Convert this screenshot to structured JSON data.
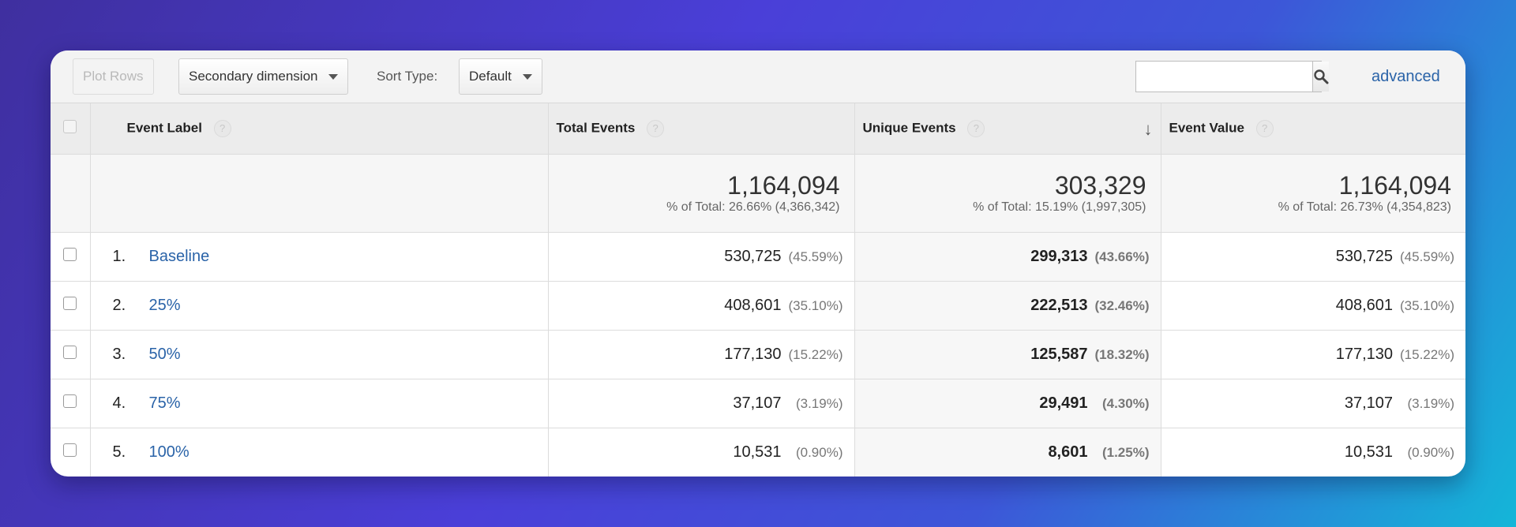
{
  "toolbar": {
    "plot_rows_label": "Plot Rows",
    "secondary_dimension_label": "Secondary dimension",
    "sort_type_label": "Sort Type:",
    "sort_type_value": "Default",
    "search_placeholder": "",
    "advanced_label": "advanced"
  },
  "table": {
    "headers": {
      "event_label": "Event Label",
      "total_events": "Total Events",
      "unique_events": "Unique Events",
      "event_value": "Event Value",
      "help_glyph": "?"
    },
    "totals": {
      "total_events": {
        "value": "1,164,094",
        "sub": "% of Total: 26.66% (4,366,342)"
      },
      "unique_events": {
        "value": "303,329",
        "sub": "% of Total: 15.19% (1,997,305)"
      },
      "event_value": {
        "value": "1,164,094",
        "sub": "% of Total: 26.73% (4,354,823)"
      }
    },
    "rows": [
      {
        "index": "1.",
        "label": "Baseline",
        "total": "530,725",
        "total_pct": "(45.59%)",
        "unique": "299,313",
        "unique_pct": "(43.66%)",
        "value": "530,725",
        "value_pct": "(45.59%)"
      },
      {
        "index": "2.",
        "label": "25%",
        "total": "408,601",
        "total_pct": "(35.10%)",
        "unique": "222,513",
        "unique_pct": "(32.46%)",
        "value": "408,601",
        "value_pct": "(35.10%)"
      },
      {
        "index": "3.",
        "label": "50%",
        "total": "177,130",
        "total_pct": "(15.22%)",
        "unique": "125,587",
        "unique_pct": "(18.32%)",
        "value": "177,130",
        "value_pct": "(15.22%)"
      },
      {
        "index": "4.",
        "label": "75%",
        "total": "37,107",
        "total_pct": "(3.19%)",
        "unique": "29,491",
        "unique_pct": "(4.30%)",
        "value": "37,107",
        "value_pct": "(3.19%)"
      },
      {
        "index": "5.",
        "label": "100%",
        "total": "10,531",
        "total_pct": "(0.90%)",
        "unique": "8,601",
        "unique_pct": "(1.25%)",
        "value": "10,531",
        "value_pct": "(0.90%)"
      }
    ]
  },
  "icons": {
    "search": "search-icon",
    "sort_descending": "arrow-down-icon",
    "help": "help-icon"
  },
  "colors": {
    "link": "#2a63a8"
  }
}
